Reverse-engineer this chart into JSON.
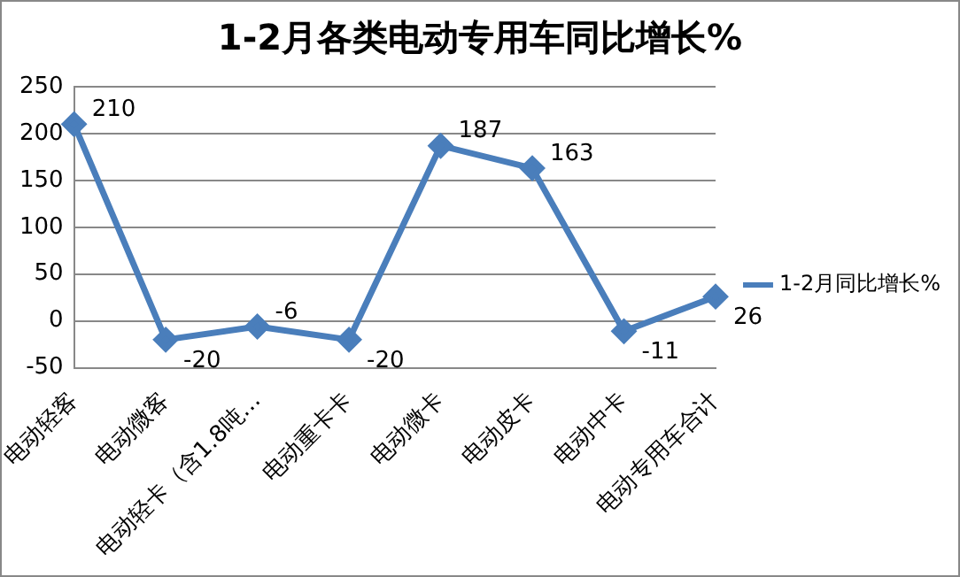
{
  "chart_data": {
    "type": "line",
    "title": "1-2月各类电动专用车同比增长%",
    "categories": [
      "电动轻客",
      "电动微客",
      "电动轻卡（含1.8吨…",
      "电动重卡卡",
      "电动微卡",
      "电动皮卡",
      "电动中卡",
      "电动专用车合计"
    ],
    "series": [
      {
        "name": "1-2月同比增长%",
        "color": "#4a7ebb",
        "values": [
          210,
          -20,
          -6,
          -20,
          187,
          163,
          -11,
          26
        ]
      }
    ],
    "ylim": [
      -50,
      250
    ],
    "yticks": [
      -50,
      0,
      50,
      100,
      150,
      200,
      250
    ],
    "grid": "y",
    "legend": "right",
    "marker": "diamond",
    "line_style": "solid",
    "data_labels": true
  }
}
